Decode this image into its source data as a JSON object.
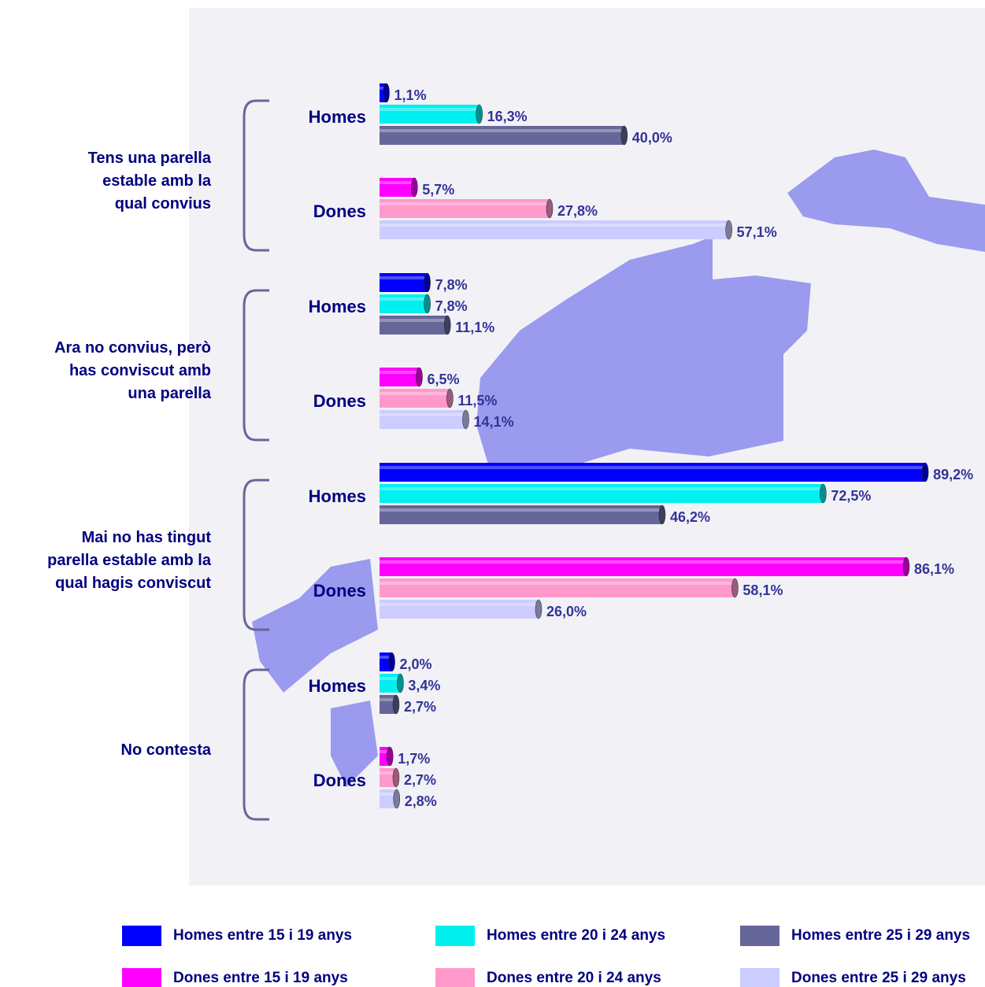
{
  "chart_data": {
    "type": "bar",
    "orientation": "horizontal",
    "xlim": [
      0,
      100
    ],
    "categories": [
      [
        "Tens una parella",
        "estable amb la",
        "qual convius"
      ],
      [
        "Ara no convius, però",
        "has conviscut amb",
        "una parella"
      ],
      [
        "Mai no has tingut",
        "parella estable amb la",
        "qual hagis conviscut"
      ],
      [
        "No contesta"
      ]
    ],
    "subgroups": [
      {
        "name": "Homes",
        "series": [
          {
            "name": "Homes entre 15 i 19 anys",
            "color": "#0000ff",
            "values": [
              1.1,
              7.8,
              89.2,
              2.0
            ],
            "value_labels": [
              "1,1%",
              "7,8%",
              "89,2%",
              "2,0%"
            ]
          },
          {
            "name": "Homes entre 20 i 24 anys",
            "color": "#00f0f0",
            "values": [
              16.3,
              7.8,
              72.5,
              3.4
            ],
            "value_labels": [
              "16,3%",
              "7,8%",
              "72,5%",
              "3,4%"
            ]
          },
          {
            "name": "Homes entre 25 i 29 anys",
            "color": "#666699",
            "values": [
              40.0,
              11.1,
              46.2,
              2.7
            ],
            "value_labels": [
              "40,0%",
              "11,1%",
              "46,2%",
              "2,7%"
            ]
          }
        ]
      },
      {
        "name": "Dones",
        "series": [
          {
            "name": "Dones entre 15 i 19 anys",
            "color": "#ff00ff",
            "values": [
              5.7,
              6.5,
              86.1,
              1.7
            ],
            "value_labels": [
              "5,7%",
              "6,5%",
              "86,1%",
              "1,7%"
            ]
          },
          {
            "name": "Dones entre 20 i 24 anys",
            "color": "#ff99cc",
            "values": [
              27.8,
              11.5,
              58.1,
              2.7
            ],
            "value_labels": [
              "27,8%",
              "11,5%",
              "58,1%",
              "2,7%"
            ]
          },
          {
            "name": "Dones entre 25 i 29 anys",
            "color": "#ccccff",
            "values": [
              57.1,
              14.1,
              26.0,
              2.8
            ],
            "value_labels": [
              "57,1%",
              "14,1%",
              "26,0%",
              "2,8%"
            ]
          }
        ]
      }
    ]
  }
}
